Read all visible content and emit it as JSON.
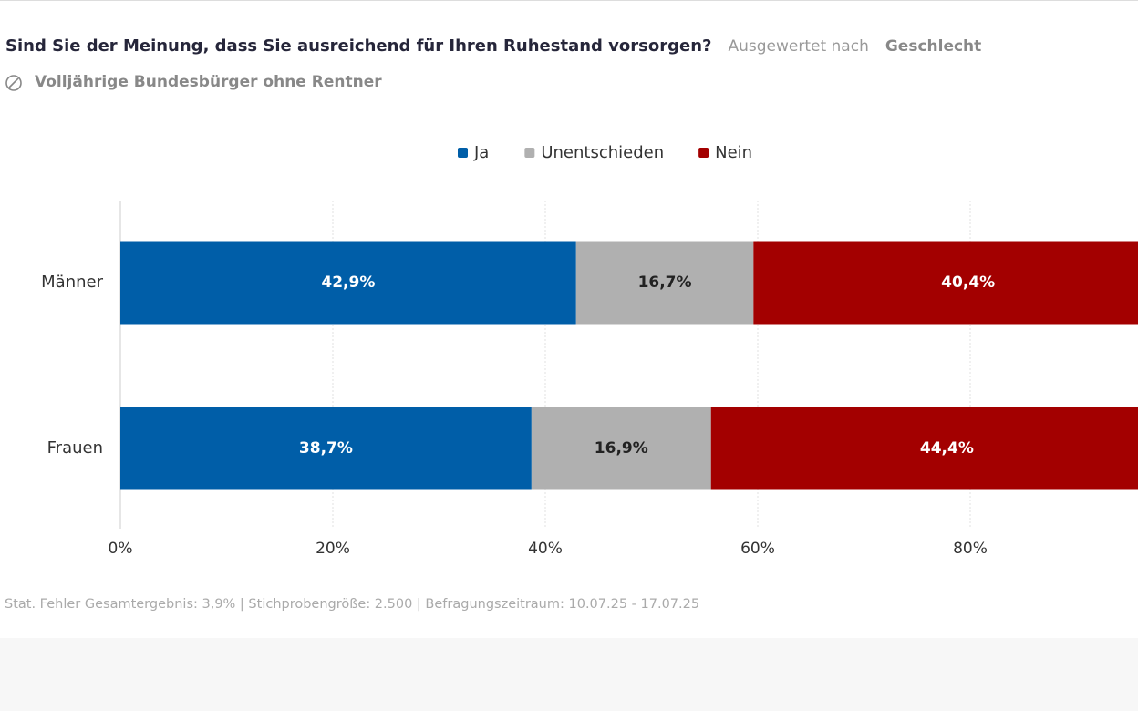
{
  "chart_data": {
    "type": "stacked-bar-horizontal",
    "title": "Sind Sie der Meinung, dass Sie ausreichend für Ihren Ruhestand vorsorgen?",
    "filter_label": "Ausgewertet nach",
    "filter_value": "Geschlecht",
    "subtitle": "Volljährige Bundesbürger ohne Rentner",
    "footnote": "Stat. Fehler Gesamtergebnis: 3,9% | Stichprobengröße: 2.500 | Befragungszeitraum: 10.07.25 - 17.07.25",
    "categories": [
      "Männer",
      "Frauen"
    ],
    "series": [
      {
        "name": "Ja",
        "color": "#005ea8",
        "values": [
          42.9,
          38.7
        ],
        "value_labels": [
          "42,9%",
          "38,7%"
        ]
      },
      {
        "name": "Unentschieden",
        "color": "#b0b0b0",
        "values": [
          16.7,
          16.9
        ],
        "value_labels": [
          "16,7%",
          "16,9%"
        ]
      },
      {
        "name": "Nein",
        "color": "#a30000",
        "values": [
          40.4,
          44.4
        ],
        "value_labels": [
          "40,4%",
          "44,4%"
        ]
      }
    ],
    "xlim": [
      0,
      100
    ],
    "xticks": [
      {
        "value": 0,
        "label": "0%"
      },
      {
        "value": 20,
        "label": "20%"
      },
      {
        "value": 40,
        "label": "40%"
      },
      {
        "value": 60,
        "label": "60%"
      },
      {
        "value": 80,
        "label": "80%"
      }
    ],
    "grid": true,
    "legend": "top"
  }
}
